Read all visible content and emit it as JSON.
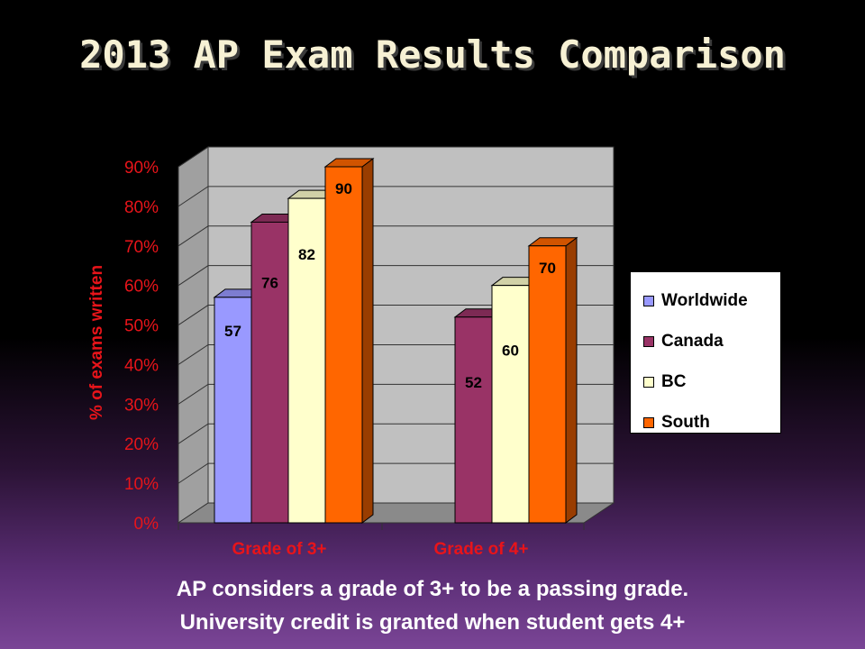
{
  "slide": {
    "title": "2013 AP Exam Results Comparison",
    "caption_line1": "AP considers a grade of 3+ to be a passing grade.",
    "caption_line2": "University credit is granted when student gets 4+"
  },
  "colors": {
    "Worldwide": "#9999ff",
    "Canada": "#993366",
    "BC": "#ffffcc",
    "South": "#ff6600",
    "axis_text": "#e8141a"
  },
  "chart_data": {
    "type": "bar",
    "categories": [
      "Grade of 3+",
      "Grade of 4+"
    ],
    "series": [
      {
        "name": "Worldwide",
        "values": [
          57,
          null
        ]
      },
      {
        "name": "Canada",
        "values": [
          76,
          52
        ]
      },
      {
        "name": "BC",
        "values": [
          82,
          60
        ]
      },
      {
        "name": "South",
        "values": [
          90,
          70
        ]
      }
    ],
    "data_labels": [
      [
        "57",
        "76",
        "82",
        "90"
      ],
      [
        "",
        "52",
        "60",
        "70"
      ]
    ],
    "ylabel": "% of exams written",
    "yticks": [
      "0%",
      "10%",
      "20%",
      "30%",
      "40%",
      "50%",
      "60%",
      "70%",
      "80%",
      "90%"
    ],
    "ylim": [
      0,
      90
    ],
    "grid": true,
    "three_d": true,
    "legend_position": "right"
  }
}
